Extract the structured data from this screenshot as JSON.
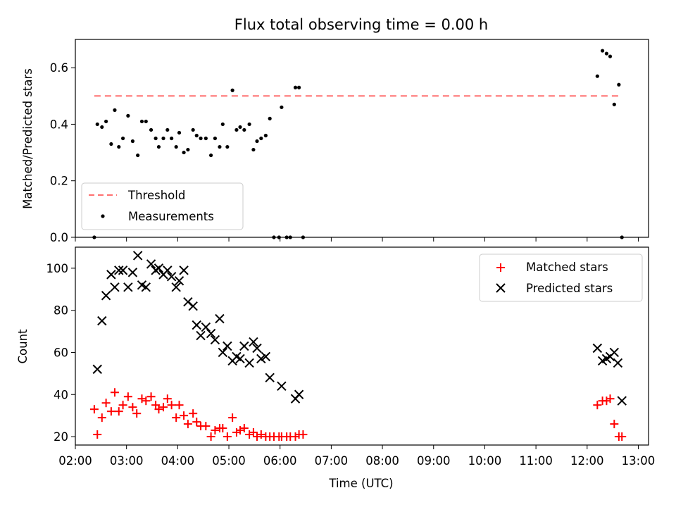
{
  "chart_data": [
    {
      "type": "scatter",
      "title": "Flux total observing time = 0.00 h",
      "xlabel": "",
      "ylabel": "Matched/Predicted stars",
      "xlim": [
        2.0,
        13.2
      ],
      "ylim": [
        0,
        0.7
      ],
      "yticks": [
        {
          "v": 0.0,
          "label": "0.0"
        },
        {
          "v": 0.2,
          "label": "0.2"
        },
        {
          "v": 0.4,
          "label": "0.4"
        },
        {
          "v": 0.6,
          "label": "0.6"
        }
      ],
      "legend_position": "lower-left",
      "threshold": {
        "name": "Threshold",
        "value": 0.5,
        "x_range": [
          2.37,
          12.68
        ],
        "color": "#ff7070",
        "style": "dashed"
      },
      "series": [
        {
          "name": "Measurements",
          "color": "#000000",
          "marker": "dot",
          "points": [
            [
              2.37,
              0.0
            ],
            [
              2.43,
              0.4
            ],
            [
              2.52,
              0.39
            ],
            [
              2.6,
              0.41
            ],
            [
              2.7,
              0.33
            ],
            [
              2.77,
              0.45
            ],
            [
              2.85,
              0.32
            ],
            [
              2.93,
              0.35
            ],
            [
              3.03,
              0.43
            ],
            [
              3.12,
              0.34
            ],
            [
              3.22,
              0.29
            ],
            [
              3.3,
              0.41
            ],
            [
              3.38,
              0.41
            ],
            [
              3.48,
              0.38
            ],
            [
              3.57,
              0.35
            ],
            [
              3.63,
              0.32
            ],
            [
              3.72,
              0.35
            ],
            [
              3.8,
              0.38
            ],
            [
              3.88,
              0.35
            ],
            [
              3.97,
              0.32
            ],
            [
              4.03,
              0.37
            ],
            [
              4.12,
              0.3
            ],
            [
              4.2,
              0.31
            ],
            [
              4.3,
              0.38
            ],
            [
              4.37,
              0.36
            ],
            [
              4.45,
              0.35
            ],
            [
              4.55,
              0.35
            ],
            [
              4.65,
              0.29
            ],
            [
              4.73,
              0.35
            ],
            [
              4.82,
              0.32
            ],
            [
              4.88,
              0.4
            ],
            [
              4.97,
              0.32
            ],
            [
              5.07,
              0.52
            ],
            [
              5.15,
              0.38
            ],
            [
              5.22,
              0.39
            ],
            [
              5.3,
              0.38
            ],
            [
              5.4,
              0.4
            ],
            [
              5.48,
              0.31
            ],
            [
              5.55,
              0.34
            ],
            [
              5.63,
              0.35
            ],
            [
              5.72,
              0.36
            ],
            [
              5.8,
              0.42
            ],
            [
              5.88,
              0.0
            ],
            [
              5.98,
              0.0
            ],
            [
              6.03,
              0.46
            ],
            [
              6.13,
              0.0
            ],
            [
              6.2,
              0.0
            ],
            [
              6.3,
              0.53
            ],
            [
              6.37,
              0.53
            ],
            [
              6.45,
              0.0
            ],
            [
              12.2,
              0.57
            ],
            [
              12.3,
              0.66
            ],
            [
              12.38,
              0.65
            ],
            [
              12.45,
              0.64
            ],
            [
              12.53,
              0.47
            ],
            [
              12.62,
              0.54
            ],
            [
              12.68,
              0.0
            ]
          ]
        }
      ]
    },
    {
      "type": "scatter",
      "title": "",
      "xlabel": "Time (UTC)",
      "ylabel": "Count",
      "xlim": [
        2.0,
        13.2
      ],
      "ylim": [
        16,
        110
      ],
      "xticks": [
        {
          "v": 2,
          "label": "02:00"
        },
        {
          "v": 3,
          "label": "03:00"
        },
        {
          "v": 4,
          "label": "04:00"
        },
        {
          "v": 5,
          "label": "05:00"
        },
        {
          "v": 6,
          "label": "06:00"
        },
        {
          "v": 7,
          "label": "07:00"
        },
        {
          "v": 8,
          "label": "08:00"
        },
        {
          "v": 9,
          "label": "09:00"
        },
        {
          "v": 10,
          "label": "10:00"
        },
        {
          "v": 11,
          "label": "11:00"
        },
        {
          "v": 12,
          "label": "12:00"
        },
        {
          "v": 13,
          "label": "13:00"
        }
      ],
      "yticks": [
        {
          "v": 20,
          "label": "20"
        },
        {
          "v": 40,
          "label": "40"
        },
        {
          "v": 60,
          "label": "60"
        },
        {
          "v": 80,
          "label": "80"
        },
        {
          "v": 100,
          "label": "100"
        }
      ],
      "legend_position": "upper-right",
      "series": [
        {
          "name": "Matched stars",
          "color": "#ff0000",
          "marker": "plus",
          "points": [
            [
              2.37,
              33
            ],
            [
              2.43,
              21
            ],
            [
              2.52,
              29
            ],
            [
              2.6,
              36
            ],
            [
              2.7,
              32
            ],
            [
              2.77,
              41
            ],
            [
              2.85,
              32
            ],
            [
              2.93,
              35
            ],
            [
              3.03,
              39
            ],
            [
              3.12,
              34
            ],
            [
              3.2,
              31
            ],
            [
              3.3,
              38
            ],
            [
              3.38,
              37
            ],
            [
              3.48,
              39
            ],
            [
              3.57,
              35
            ],
            [
              3.63,
              33
            ],
            [
              3.72,
              34
            ],
            [
              3.8,
              38
            ],
            [
              3.88,
              35
            ],
            [
              3.97,
              29
            ],
            [
              4.03,
              35
            ],
            [
              4.12,
              30
            ],
            [
              4.2,
              26
            ],
            [
              4.3,
              31
            ],
            [
              4.37,
              27
            ],
            [
              4.45,
              25
            ],
            [
              4.55,
              25
            ],
            [
              4.65,
              20
            ],
            [
              4.73,
              23
            ],
            [
              4.82,
              24
            ],
            [
              4.88,
              24
            ],
            [
              4.97,
              20
            ],
            [
              5.07,
              29
            ],
            [
              5.15,
              22
            ],
            [
              5.22,
              23
            ],
            [
              5.3,
              24
            ],
            [
              5.4,
              21
            ],
            [
              5.48,
              22
            ],
            [
              5.55,
              20
            ],
            [
              5.63,
              21
            ],
            [
              5.72,
              20
            ],
            [
              5.8,
              20
            ],
            [
              5.88,
              20
            ],
            [
              5.98,
              20
            ],
            [
              6.03,
              20
            ],
            [
              6.13,
              20
            ],
            [
              6.2,
              20
            ],
            [
              6.3,
              20
            ],
            [
              6.37,
              21
            ],
            [
              6.45,
              21
            ],
            [
              12.2,
              35
            ],
            [
              12.3,
              37
            ],
            [
              12.38,
              37
            ],
            [
              12.45,
              38
            ],
            [
              12.53,
              26
            ],
            [
              12.62,
              20
            ],
            [
              12.68,
              20
            ]
          ]
        },
        {
          "name": "Predicted stars",
          "color": "#000000",
          "marker": "x",
          "points": [
            [
              2.43,
              52
            ],
            [
              2.52,
              75
            ],
            [
              2.6,
              87
            ],
            [
              2.7,
              97
            ],
            [
              2.77,
              91
            ],
            [
              2.85,
              99
            ],
            [
              2.93,
              99
            ],
            [
              3.03,
              91
            ],
            [
              3.12,
              98
            ],
            [
              3.22,
              106
            ],
            [
              3.3,
              92
            ],
            [
              3.38,
              91
            ],
            [
              3.48,
              102
            ],
            [
              3.57,
              99
            ],
            [
              3.63,
              100
            ],
            [
              3.72,
              97
            ],
            [
              3.8,
              99
            ],
            [
              3.88,
              96
            ],
            [
              3.97,
              91
            ],
            [
              4.03,
              94
            ],
            [
              4.12,
              99
            ],
            [
              4.2,
              84
            ],
            [
              4.3,
              82
            ],
            [
              4.37,
              73
            ],
            [
              4.45,
              68
            ],
            [
              4.55,
              72
            ],
            [
              4.65,
              69
            ],
            [
              4.73,
              66
            ],
            [
              4.82,
              76
            ],
            [
              4.88,
              60
            ],
            [
              4.97,
              63
            ],
            [
              5.07,
              56
            ],
            [
              5.15,
              58
            ],
            [
              5.22,
              57
            ],
            [
              5.3,
              63
            ],
            [
              5.4,
              55
            ],
            [
              5.48,
              65
            ],
            [
              5.55,
              62
            ],
            [
              5.63,
              57
            ],
            [
              5.72,
              58
            ],
            [
              5.8,
              48
            ],
            [
              6.03,
              44
            ],
            [
              6.3,
              38
            ],
            [
              6.37,
              40
            ],
            [
              12.2,
              62
            ],
            [
              12.3,
              56
            ],
            [
              12.38,
              57
            ],
            [
              12.45,
              58
            ],
            [
              12.53,
              60
            ],
            [
              12.6,
              55
            ],
            [
              12.68,
              37
            ]
          ]
        }
      ]
    }
  ]
}
